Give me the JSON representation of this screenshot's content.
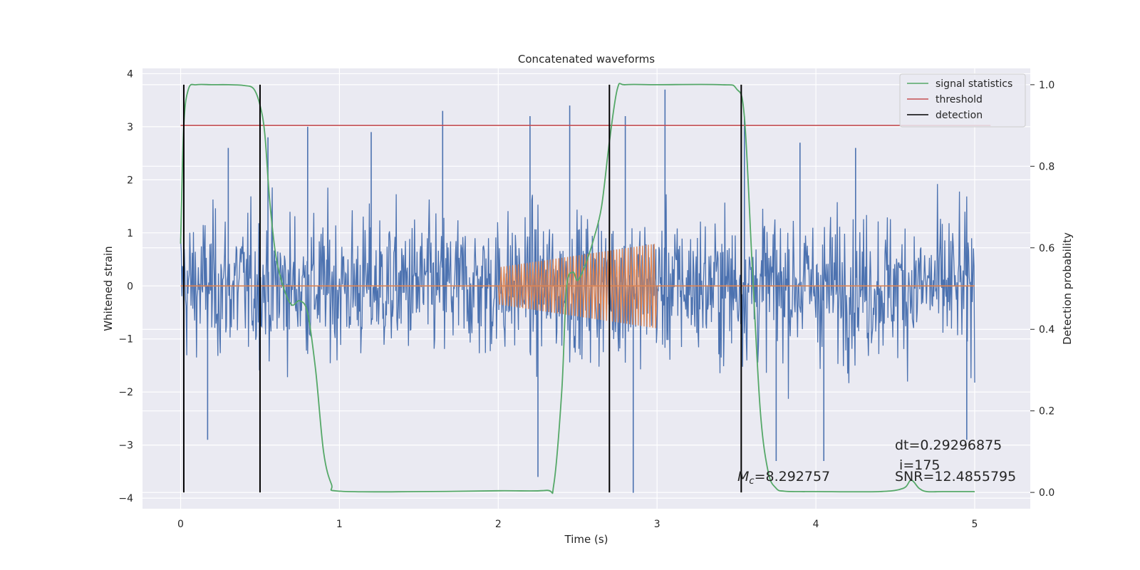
{
  "chart_data": {
    "type": "line",
    "title": "Concatenated waveforms",
    "xlabel": "Time (s)",
    "ylabel": "Whitened strain",
    "y2label": "Detection probability",
    "xlim": [
      -0.24,
      5.35
    ],
    "ylim": [
      -4.2,
      4.1
    ],
    "y2lim": [
      -0.04,
      1.04
    ],
    "xticks": [
      0,
      1,
      2,
      3,
      4,
      5
    ],
    "yticks": [
      -4,
      -3,
      -2,
      -1,
      0,
      1,
      2,
      3,
      4
    ],
    "y2ticks": [
      0.0,
      0.2,
      0.4,
      0.6,
      0.8,
      1.0
    ],
    "xtick_labels": [
      "0",
      "1",
      "2",
      "3",
      "4",
      "5"
    ],
    "ytick_labels": [
      "−4",
      "−3",
      "−2",
      "−1",
      "0",
      "1",
      "2",
      "3",
      "4"
    ],
    "y2tick_labels": [
      "0.0",
      "0.2",
      "0.4",
      "0.6",
      "0.8",
      "1.0"
    ],
    "grid": true,
    "legend_position": "top-right",
    "legend": [
      "signal statistics",
      "threshold",
      "detection"
    ],
    "colors": {
      "strain": "#4c72b0",
      "template": "#dd8452",
      "signal_statistics": "#55a868",
      "threshold": "#c44e52",
      "detection": "#000000",
      "background": "#eaeaf2",
      "grid": "#ffffff"
    },
    "series": [
      {
        "name": "signal statistics",
        "axis": "right",
        "x": [
          0.0,
          0.02,
          0.05,
          0.1,
          0.2,
          0.3,
          0.4,
          0.46,
          0.5,
          0.53,
          0.56,
          0.6,
          0.65,
          0.7,
          0.75,
          0.8,
          0.85,
          0.9,
          0.95,
          1.0,
          1.5,
          2.0,
          2.3,
          2.35,
          2.4,
          2.43,
          2.47,
          2.5,
          2.55,
          2.6,
          2.65,
          2.7,
          2.75,
          2.8,
          3.0,
          3.4,
          3.5,
          3.55,
          3.6,
          3.65,
          3.7,
          3.75,
          3.8,
          3.9,
          4.0,
          4.4,
          4.55,
          4.6,
          4.65,
          4.7,
          4.8,
          5.0
        ],
        "y": [
          0.61,
          0.9,
          0.99,
          1.0,
          1.0,
          1.0,
          0.998,
          0.99,
          0.95,
          0.88,
          0.72,
          0.58,
          0.5,
          0.46,
          0.47,
          0.44,
          0.3,
          0.1,
          0.02,
          0.003,
          0.002,
          0.004,
          0.005,
          0.02,
          0.25,
          0.5,
          0.54,
          0.52,
          0.56,
          0.62,
          0.7,
          0.86,
          0.99,
          1.0,
          1.0,
          1.0,
          0.99,
          0.92,
          0.55,
          0.2,
          0.05,
          0.01,
          0.003,
          0.002,
          0.002,
          0.002,
          0.01,
          0.03,
          0.01,
          0.002,
          0.002,
          0.002
        ]
      },
      {
        "name": "threshold",
        "axis": "right",
        "x": [
          0.0,
          5.1
        ],
        "y": [
          0.9,
          0.9
        ]
      }
    ],
    "detections_x": [
      0.02,
      0.5,
      2.7,
      3.53
    ],
    "strain_peaks": [
      {
        "x": 0.3,
        "y": 2.6
      },
      {
        "x": 0.55,
        "y": 2.8
      },
      {
        "x": 0.8,
        "y": 3.0
      },
      {
        "x": 1.2,
        "y": 2.9
      },
      {
        "x": 1.65,
        "y": 3.3
      },
      {
        "x": 2.2,
        "y": 3.2
      },
      {
        "x": 2.45,
        "y": 3.4
      },
      {
        "x": 2.8,
        "y": 3.2
      },
      {
        "x": 3.05,
        "y": 3.7
      },
      {
        "x": 3.55,
        "y": 3.2
      },
      {
        "x": 3.9,
        "y": 2.7
      },
      {
        "x": 4.25,
        "y": 2.6
      },
      {
        "x": 2.85,
        "y": -3.9
      },
      {
        "x": 2.25,
        "y": -3.6
      },
      {
        "x": 0.17,
        "y": -2.9
      },
      {
        "x": 3.75,
        "y": -3.3
      },
      {
        "x": 4.05,
        "y": -3.3
      },
      {
        "x": 4.95,
        "y": -2.9
      }
    ],
    "template": {
      "name": "template",
      "x_start": 2.0,
      "x_end": 3.0,
      "amp_start": 0.35,
      "amp_end": 0.8,
      "cycles": 55
    },
    "annotations": {
      "mc": "=8.292757",
      "dt": "dt=0.29296875",
      "i": " i=175",
      "snr": "SNR=12.4855795"
    }
  }
}
